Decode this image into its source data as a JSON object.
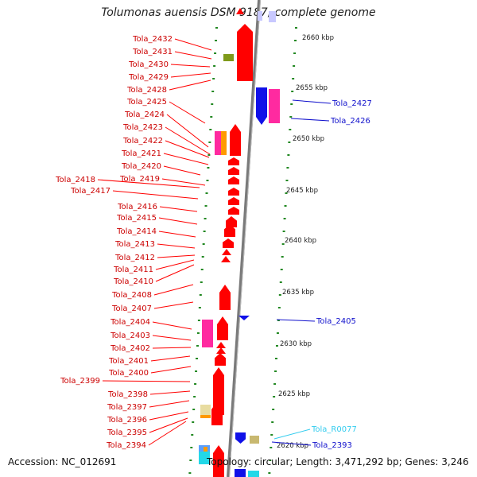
{
  "title": "Tolumonas auensis DSM 9187, complete genome",
  "footer": {
    "accession": "Accession: NC_012691",
    "topology": "Topology: circular; Length: 3,471,292 bp; Genes: 3,246"
  },
  "colors": {
    "forward_gene": "#ff0000",
    "reverse_gene": "#1010e8",
    "pink_gene": "#ff2aa0",
    "orange_gene": "#ff9900",
    "olive_gene": "#7f9a1a",
    "tan_gene": "#c8b870",
    "cyan_gene": "#22d8e8",
    "rna_label": "#33ccee",
    "dotted_scale": "#228822",
    "backbone": "#808080"
  },
  "kbp_ticks": [
    "2660 kbp",
    "2655 kbp",
    "2650 kbp",
    "2645 kbp",
    "2640 kbp",
    "2635 kbp",
    "2630 kbp",
    "2625 kbp",
    "2620 kbp"
  ],
  "left_labels": [
    "Tola_2432",
    "Tola_2431",
    "Tola_2430",
    "Tola_2429",
    "Tola_2428",
    "Tola_2425",
    "Tola_2424",
    "Tola_2423",
    "Tola_2422",
    "Tola_2421",
    "Tola_2420",
    "Tola_2419",
    "Tola_2418",
    "Tola_2417",
    "Tola_2416",
    "Tola_2415",
    "Tola_2414",
    "Tola_2413",
    "Tola_2412",
    "Tola_2411",
    "Tola_2410",
    "Tola_2408",
    "Tola_2407",
    "Tola_2404",
    "Tola_2403",
    "Tola_2402",
    "Tola_2401",
    "Tola_2400",
    "Tola_2399",
    "Tola_2398",
    "Tola_2397",
    "Tola_2396",
    "Tola_2395",
    "Tola_2394"
  ],
  "right_labels": [
    {
      "text": "Tola_2427",
      "color": "blue"
    },
    {
      "text": "Tola_2426",
      "color": "blue"
    },
    {
      "text": "Tola_2405",
      "color": "blue"
    },
    {
      "text": "Tola_R0077",
      "color": "cyan"
    },
    {
      "text": "Tola_2393",
      "color": "blue"
    }
  ]
}
